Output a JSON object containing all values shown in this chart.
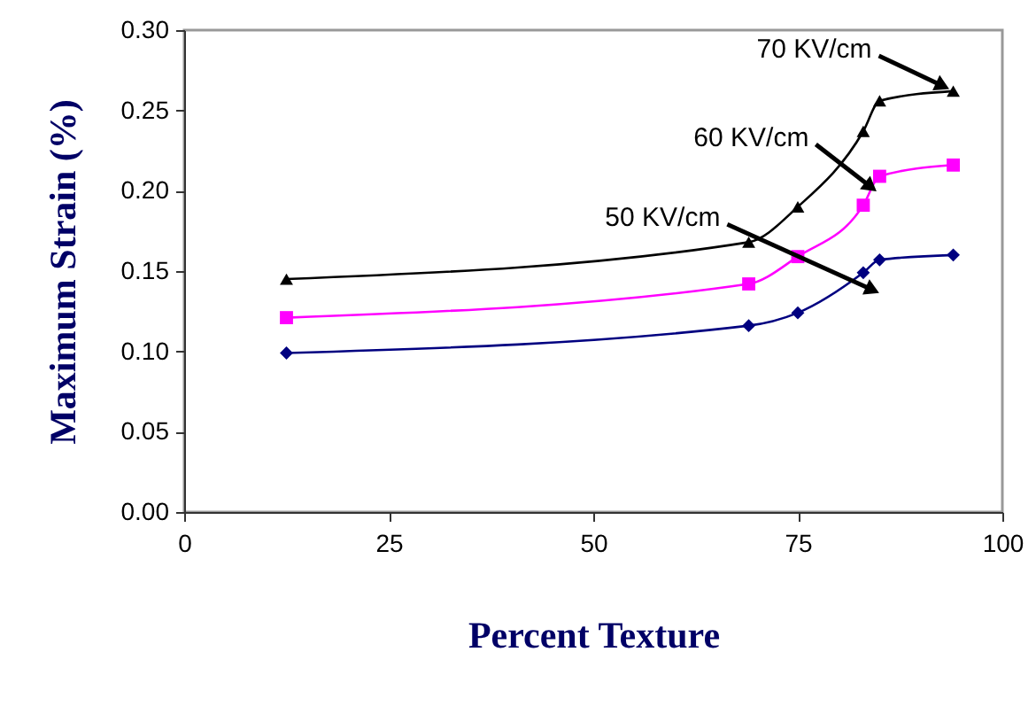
{
  "chart_data": {
    "type": "line",
    "xlabel": "Percent Texture",
    "ylabel": "Maximum Strain (%)",
    "x": [
      12.5,
      69,
      75,
      83,
      85,
      94
    ],
    "series": [
      {
        "name": "50 KV/cm",
        "color": "#000080",
        "marker": "diamond",
        "values": [
          0.099,
          0.116,
          0.124,
          0.149,
          0.157,
          0.16
        ]
      },
      {
        "name": "60 KV/cm",
        "color": "#ff00ff",
        "marker": "square",
        "values": [
          0.121,
          0.142,
          0.159,
          0.191,
          0.209,
          0.216
        ]
      },
      {
        "name": "70 KV/cm",
        "color": "#000000",
        "marker": "triangle",
        "values": [
          0.145,
          0.168,
          0.19,
          0.237,
          0.256,
          0.262
        ]
      }
    ],
    "xlim": [
      0,
      100
    ],
    "xticks": [
      0,
      25,
      50,
      75,
      100
    ],
    "ylim": [
      0,
      0.3
    ],
    "yticks": [
      {
        "value": 0,
        "label": "0.00"
      },
      {
        "value": 0.05,
        "label": "0.05"
      },
      {
        "value": 0.1,
        "label": "0.10"
      },
      {
        "value": 0.15,
        "label": "0.15"
      },
      {
        "value": 0.2,
        "label": "0.20"
      },
      {
        "value": 0.25,
        "label": "0.25"
      },
      {
        "value": 0.3,
        "label": "0.30"
      }
    ],
    "grid": false,
    "legend": false
  }
}
